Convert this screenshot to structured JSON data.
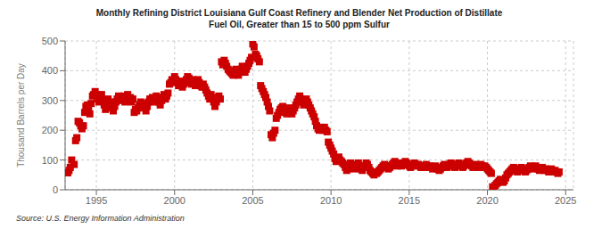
{
  "chart_data": {
    "type": "scatter",
    "title": "Monthly Refining District Louisiana Gulf Coast Refinery and Blender Net Production of Distillate\nFuel Oil, Greater than 15 to 500 ppm Sulfur",
    "ylabel": "Thousand Barrels per Day",
    "annotations": [
      "Source: U.S. Energy Information Administration"
    ],
    "color": "#cc0000",
    "marker": "square",
    "grid": true,
    "xlim": [
      1993.0,
      2025.5
    ],
    "xticks": [
      1995,
      2000,
      2005,
      2010,
      2015,
      2020,
      2025
    ],
    "ylim": [
      0,
      500
    ],
    "yticks": [
      0,
      100,
      200,
      300,
      400,
      500
    ],
    "x": [
      1993.17,
      1993.25,
      1993.33,
      1993.42,
      1993.58,
      1993.67,
      1993.75,
      1993.83,
      1993.92,
      1994.0,
      1994.08,
      1994.17,
      1994.25,
      1994.33,
      1994.42,
      1994.5,
      1994.58,
      1994.67,
      1994.75,
      1994.83,
      1994.92,
      1995.0,
      1995.08,
      1995.17,
      1995.25,
      1995.33,
      1995.42,
      1995.5,
      1995.58,
      1995.67,
      1995.75,
      1995.83,
      1995.92,
      1996.0,
      1996.08,
      1996.17,
      1996.25,
      1996.33,
      1996.42,
      1996.5,
      1996.58,
      1996.67,
      1996.75,
      1996.83,
      1996.92,
      1997.0,
      1997.08,
      1997.17,
      1997.25,
      1997.33,
      1997.42,
      1997.5,
      1997.58,
      1997.67,
      1997.75,
      1997.83,
      1997.92,
      1998.0,
      1998.08,
      1998.17,
      1998.25,
      1998.33,
      1998.42,
      1998.5,
      1998.58,
      1998.67,
      1998.75,
      1998.83,
      1998.92,
      1999.0,
      1999.08,
      1999.17,
      1999.25,
      1999.33,
      1999.42,
      1999.5,
      1999.58,
      1999.67,
      1999.75,
      1999.83,
      1999.92,
      2000.0,
      2000.08,
      2000.17,
      2000.25,
      2000.33,
      2000.42,
      2000.5,
      2000.58,
      2000.67,
      2000.75,
      2000.83,
      2000.92,
      2001.0,
      2001.08,
      2001.17,
      2001.25,
      2001.33,
      2001.42,
      2001.5,
      2001.58,
      2001.67,
      2001.75,
      2001.83,
      2001.92,
      2002.0,
      2002.08,
      2002.17,
      2002.25,
      2002.33,
      2002.42,
      2002.5,
      2002.58,
      2002.67,
      2002.75,
      2002.83,
      2002.92,
      2003.0,
      2003.08,
      2003.17,
      2003.25,
      2003.33,
      2003.42,
      2003.5,
      2003.58,
      2003.67,
      2003.75,
      2003.83,
      2003.92,
      2004.0,
      2004.08,
      2004.17,
      2004.25,
      2004.33,
      2004.42,
      2004.5,
      2004.58,
      2004.67,
      2004.75,
      2004.83,
      2004.92,
      2005.0,
      2005.08,
      2005.17,
      2005.25,
      2005.33,
      2005.42,
      2005.5,
      2005.58,
      2005.67,
      2005.75,
      2005.83,
      2005.92,
      2006.0,
      2006.08,
      2006.17,
      2006.25,
      2006.33,
      2006.42,
      2006.5,
      2006.58,
      2006.67,
      2006.75,
      2006.83,
      2006.92,
      2007.0,
      2007.08,
      2007.17,
      2007.25,
      2007.33,
      2007.42,
      2007.5,
      2007.58,
      2007.67,
      2007.75,
      2007.83,
      2007.92,
      2008.0,
      2008.08,
      2008.17,
      2008.25,
      2008.33,
      2008.42,
      2008.5,
      2008.58,
      2008.67,
      2008.75,
      2008.83,
      2008.92,
      2009.0,
      2009.08,
      2009.17,
      2009.25,
      2009.33,
      2009.42,
      2009.5,
      2009.58,
      2009.67,
      2009.75,
      2009.83,
      2009.92,
      2010.0,
      2010.08,
      2010.17,
      2010.25,
      2010.33,
      2010.42,
      2010.5,
      2010.58,
      2010.67,
      2010.75,
      2010.83,
      2010.92,
      2011.0,
      2011.08,
      2011.17,
      2011.25,
      2011.33,
      2011.42,
      2011.5,
      2011.58,
      2011.67,
      2011.75,
      2011.83,
      2011.92,
      2012.0,
      2012.08,
      2012.17,
      2012.25,
      2012.33,
      2012.42,
      2012.5,
      2012.58,
      2012.67,
      2012.75,
      2012.83,
      2012.92,
      2013.0,
      2013.08,
      2013.17,
      2013.25,
      2013.33,
      2013.42,
      2013.5,
      2013.58,
      2013.67,
      2013.75,
      2013.83,
      2013.92,
      2014.0,
      2014.08,
      2014.17,
      2014.25,
      2014.33,
      2014.42,
      2014.5,
      2014.58,
      2014.67,
      2014.75,
      2014.83,
      2014.92,
      2015.0,
      2015.08,
      2015.17,
      2015.25,
      2015.33,
      2015.42,
      2015.5,
      2015.58,
      2015.67,
      2015.75,
      2015.83,
      2015.92,
      2016.0,
      2016.08,
      2016.17,
      2016.25,
      2016.33,
      2016.42,
      2016.5,
      2016.58,
      2016.67,
      2016.75,
      2016.83,
      2016.92,
      2017.0,
      2017.08,
      2017.17,
      2017.25,
      2017.33,
      2017.42,
      2017.5,
      2017.58,
      2017.67,
      2017.75,
      2017.83,
      2017.92,
      2018.0,
      2018.08,
      2018.17,
      2018.25,
      2018.33,
      2018.42,
      2018.5,
      2018.58,
      2018.67,
      2018.75,
      2018.83,
      2018.92,
      2019.0,
      2019.08,
      2019.17,
      2019.25,
      2019.33,
      2019.42,
      2019.5,
      2019.58,
      2019.67,
      2019.75,
      2019.83,
      2019.92,
      2020.0,
      2020.08,
      2020.17,
      2020.25,
      2020.33,
      2020.42,
      2020.5,
      2020.58,
      2020.67,
      2020.75,
      2020.83,
      2020.92,
      2021.0,
      2021.08,
      2021.17,
      2021.25,
      2021.33,
      2021.42,
      2021.5,
      2021.58,
      2021.67,
      2021.75,
      2021.83,
      2021.92,
      2022.0,
      2022.08,
      2022.17,
      2022.25,
      2022.33,
      2022.42,
      2022.5,
      2022.58,
      2022.67,
      2022.75,
      2022.83,
      2022.92,
      2023.0,
      2023.08,
      2023.17,
      2023.25,
      2023.33,
      2023.42,
      2023.5,
      2023.58,
      2023.67,
      2023.75,
      2023.83,
      2023.92,
      2024.0,
      2024.08,
      2024.17,
      2024.25,
      2024.33,
      2024.42,
      2024.5,
      2024.58
    ],
    "values": [
      57,
      65,
      75,
      100,
      85,
      165,
      175,
      230,
      225,
      215,
      205,
      215,
      260,
      280,
      285,
      270,
      255,
      290,
      315,
      320,
      330,
      320,
      305,
      295,
      310,
      320,
      300,
      285,
      270,
      290,
      305,
      295,
      285,
      275,
      265,
      280,
      295,
      305,
      315,
      300,
      310,
      305,
      315,
      295,
      310,
      320,
      305,
      310,
      295,
      305,
      260,
      270,
      265,
      275,
      285,
      295,
      290,
      285,
      275,
      265,
      280,
      295,
      305,
      300,
      310,
      295,
      305,
      315,
      305,
      295,
      285,
      300,
      310,
      320,
      305,
      315,
      325,
      355,
      360,
      370,
      365,
      380,
      370,
      360,
      350,
      365,
      355,
      345,
      355,
      360,
      370,
      380,
      375,
      365,
      355,
      370,
      360,
      350,
      360,
      370,
      360,
      350,
      345,
      355,
      345,
      335,
      325,
      315,
      305,
      320,
      310,
      295,
      280,
      295,
      305,
      315,
      305,
      430,
      420,
      435,
      425,
      415,
      405,
      400,
      395,
      390,
      385,
      395,
      405,
      395,
      385,
      395,
      405,
      415,
      405,
      395,
      405,
      415,
      425,
      435,
      445,
      490,
      480,
      455,
      450,
      440,
      430,
      350,
      340,
      330,
      320,
      310,
      295,
      280,
      265,
      185,
      175,
      190,
      200,
      240,
      250,
      260,
      270,
      275,
      280,
      270,
      260,
      255,
      265,
      275,
      265,
      255,
      265,
      275,
      285,
      295,
      305,
      315,
      305,
      295,
      285,
      295,
      305,
      295,
      285,
      275,
      265,
      255,
      245,
      230,
      215,
      205,
      200,
      210,
      205,
      200,
      210,
      200,
      195,
      160,
      150,
      140,
      130,
      120,
      105,
      95,
      100,
      110,
      100,
      95,
      90,
      85,
      75,
      65,
      70,
      80,
      90,
      80,
      75,
      70,
      80,
      85,
      90,
      80,
      70,
      65,
      75,
      80,
      90,
      85,
      75,
      65,
      60,
      55,
      50,
      60,
      55,
      60,
      65,
      70,
      75,
      80,
      85,
      80,
      75,
      70,
      75,
      80,
      85,
      90,
      95,
      85,
      80,
      90,
      85,
      80,
      85,
      90,
      95,
      90,
      85,
      80,
      75,
      80,
      85,
      90,
      85,
      80,
      85,
      80,
      75,
      80,
      75,
      80,
      85,
      80,
      75,
      80,
      75,
      70,
      75,
      80,
      75,
      70,
      65,
      70,
      75,
      80,
      85,
      80,
      75,
      80,
      85,
      90,
      85,
      80,
      75,
      80,
      85,
      90,
      85,
      80,
      75,
      80,
      85,
      90,
      95,
      90,
      85,
      80,
      75,
      80,
      85,
      80,
      75,
      80,
      85,
      80,
      75,
      80,
      75,
      70,
      65,
      60,
      55,
      10,
      5,
      15,
      20,
      25,
      30,
      35,
      30,
      25,
      30,
      40,
      50,
      55,
      60,
      65,
      70,
      75,
      70,
      65,
      60,
      65,
      70,
      75,
      70,
      65,
      60,
      65,
      70,
      75,
      80,
      75,
      70,
      75,
      80,
      75,
      70,
      65,
      70,
      75,
      70,
      65,
      70,
      65,
      60,
      65,
      70,
      65,
      60,
      65,
      60,
      55,
      60
    ]
  }
}
